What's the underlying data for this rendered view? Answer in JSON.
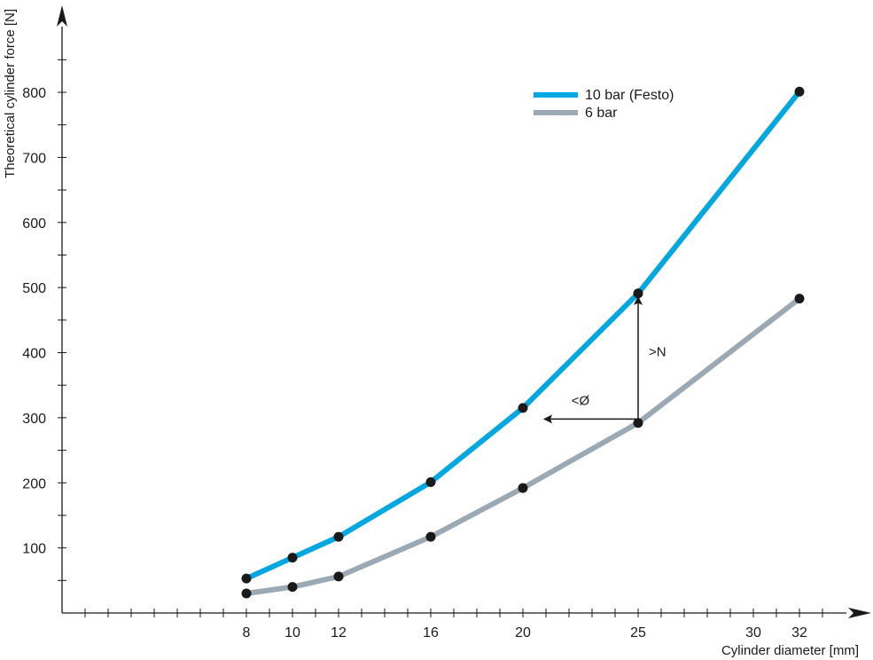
{
  "chart_data": {
    "type": "line",
    "xlabel": "Cylinder diameter [mm]",
    "ylabel": "Theoretical cylinder force [N]",
    "x_ticks": [
      8,
      10,
      12,
      16,
      20,
      25,
      30,
      32
    ],
    "y_ticks": [
      100,
      200,
      300,
      400,
      500,
      600,
      700,
      800
    ],
    "xlim": [
      0,
      34
    ],
    "ylim": [
      0,
      870
    ],
    "legend_position": "top-right",
    "series": [
      {
        "name": "10 bar (Festo)",
        "color": "#00a7e1",
        "x": [
          8,
          10,
          12,
          16,
          20,
          25,
          32
        ],
        "y": [
          53,
          85,
          117,
          201,
          315,
          491,
          801
        ]
      },
      {
        "name": "6 bar",
        "color": "#9aa9b4",
        "x": [
          8,
          10,
          12,
          16,
          20,
          25,
          32
        ],
        "y": [
          30,
          40,
          56,
          117,
          192,
          292,
          483
        ]
      }
    ],
    "annotations": [
      {
        "text": ">N",
        "arrow": "up",
        "from": [
          25,
          298
        ],
        "to": [
          25,
          491
        ]
      },
      {
        "text": "<Ø",
        "arrow": "left",
        "from": [
          25,
          298
        ],
        "to": [
          20,
          298
        ]
      }
    ]
  }
}
